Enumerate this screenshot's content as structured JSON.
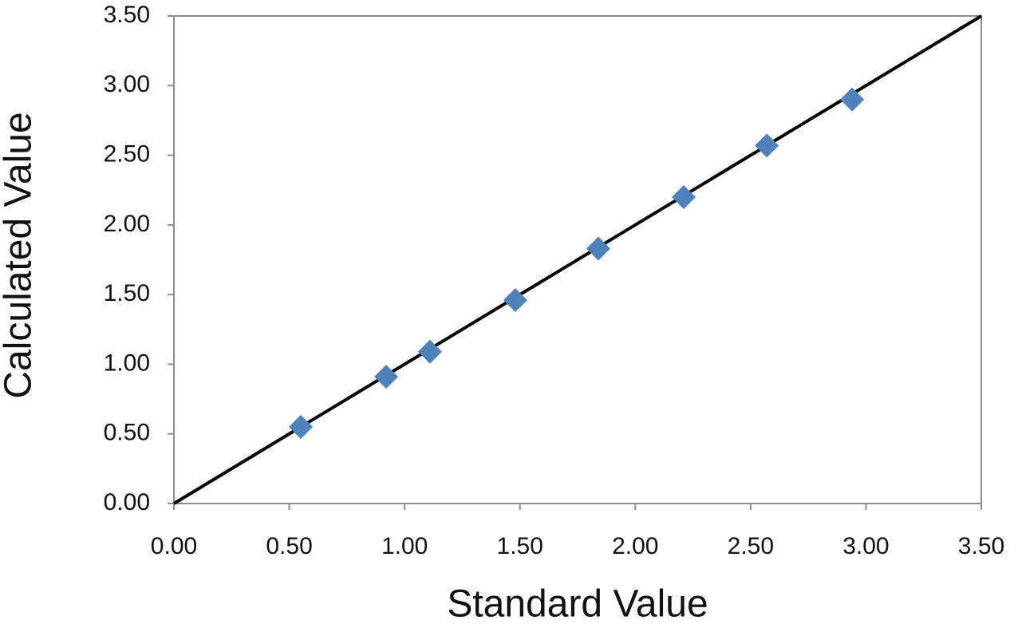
{
  "chart_data": {
    "type": "scatter",
    "x_label": "Standard Value",
    "y_label": "Calculated Value",
    "x": [
      0.55,
      0.92,
      1.11,
      1.48,
      1.84,
      2.21,
      2.57,
      2.94
    ],
    "series": [
      {
        "color": "#4f81bd",
        "values": [
          0.55,
          0.91,
          1.09,
          1.46,
          1.83,
          2.2,
          2.57,
          2.9
        ]
      }
    ],
    "trendline": {
      "color": "#000000",
      "x": [
        0,
        3.5
      ],
      "y": [
        0,
        3.5
      ]
    },
    "xlim": [
      0,
      3.5
    ],
    "ylim": [
      0,
      3.5
    ],
    "xticks": [
      {
        "value": 0,
        "label": "0.00"
      },
      {
        "value": 0.5,
        "label": "0.50"
      },
      {
        "value": 1,
        "label": "1.00"
      },
      {
        "value": 1.5,
        "label": "1.50"
      },
      {
        "value": 2,
        "label": "2.00"
      },
      {
        "value": 2.5,
        "label": "2.50"
      },
      {
        "value": 3,
        "label": "3.00"
      },
      {
        "value": 3.5,
        "label": "3.50"
      }
    ],
    "yticks": [
      {
        "value": 0,
        "label": "0.00"
      },
      {
        "value": 0.5,
        "label": "0.50"
      },
      {
        "value": 1,
        "label": "1.00"
      },
      {
        "value": 1.5,
        "label": "1.50"
      },
      {
        "value": 2,
        "label": "2.00"
      },
      {
        "value": 2.5,
        "label": "2.50"
      },
      {
        "value": 3,
        "label": "3.00"
      },
      {
        "value": 3.5,
        "label": "3.50"
      }
    ],
    "grid": false
  }
}
